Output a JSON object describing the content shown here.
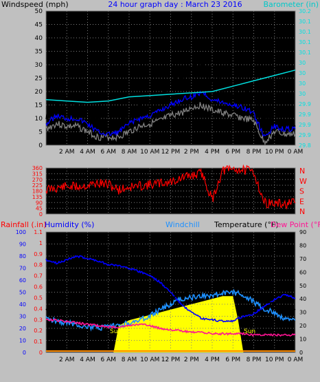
{
  "colors": {
    "bg": "#c0c0c0",
    "plot_bg": "#000000",
    "grid": "#808080",
    "wind_gust": "#000000",
    "wind_avg": "#0000ff",
    "wind_min": "#808080",
    "barometer": "#00e0e0",
    "direction": "#ff0000",
    "humidity": "#0000ff",
    "windchill": "#1e90ff",
    "temperature": "#000000",
    "dewpoint": "#ff1493",
    "rain": "#ffff00",
    "rain_line": "#ff8c00"
  },
  "chart_data": [
    {
      "type": "line",
      "title": "24 hour graph day : March 23 2016",
      "ylabel": "Windspeed (mph)",
      "y2label": "Barometer (in)",
      "ylim": [
        0,
        50
      ],
      "y2lim": [
        29.8,
        30.3
      ],
      "yticks": [
        "0",
        "5",
        "10",
        "15",
        "20",
        "25",
        "30",
        "35",
        "40",
        "45",
        "50"
      ],
      "y2ticks": [
        "29.8",
        "29.9",
        "29.9",
        "29.9",
        "29.9",
        "30",
        "30",
        "30",
        "30",
        "30.1",
        "30.1",
        "30.1",
        "30.1",
        "30.2"
      ],
      "xticks": [
        "2 AM",
        "4 AM",
        "6 AM",
        "8 AM",
        "10 AM",
        "12 PM",
        "2 PM",
        "4 PM",
        "6 PM",
        "8 PM",
        "10 PM",
        "0 AM"
      ],
      "grid": true,
      "series": [
        {
          "name": "",
          "key": "gust",
          "x": [
            0,
            1,
            2,
            3,
            4,
            5,
            6,
            7,
            8,
            9,
            10,
            11,
            12,
            13,
            14,
            15,
            16,
            17,
            18,
            19,
            20,
            21,
            22,
            23,
            24
          ],
          "values": [
            9,
            16,
            15,
            14,
            12,
            8,
            6,
            7,
            10,
            14,
            15,
            18,
            22,
            25,
            27,
            30,
            24,
            22,
            20,
            19,
            18,
            10,
            8,
            8,
            7
          ]
        },
        {
          "name": "",
          "key": "avg",
          "x": [
            0,
            1,
            2,
            3,
            4,
            5,
            6,
            7,
            8,
            9,
            10,
            11,
            12,
            13,
            14,
            15,
            16,
            17,
            18,
            19,
            20,
            21,
            22,
            23,
            24
          ],
          "values": [
            8,
            11,
            10,
            10,
            8,
            5,
            4,
            5,
            8,
            10,
            11,
            13,
            15,
            17,
            18,
            20,
            17,
            16,
            15,
            14,
            12,
            3,
            7,
            6,
            6
          ]
        },
        {
          "name": "",
          "key": "min",
          "x": [
            0,
            1,
            2,
            3,
            4,
            5,
            6,
            7,
            8,
            9,
            10,
            11,
            12,
            13,
            14,
            15,
            16,
            17,
            18,
            19,
            20,
            21,
            22,
            23,
            24
          ],
          "values": [
            6,
            8,
            7,
            7,
            5,
            3,
            3,
            3,
            5,
            7,
            8,
            9,
            11,
            12,
            14,
            15,
            13,
            12,
            11,
            10,
            9,
            1,
            5,
            4,
            4
          ]
        },
        {
          "name": "",
          "key": "baro",
          "axis": "y2",
          "x": [
            0,
            2,
            4,
            6,
            8,
            10,
            12,
            14,
            16,
            18,
            20,
            22,
            24
          ],
          "values": [
            29.97,
            29.965,
            29.96,
            29.965,
            29.98,
            29.985,
            29.99,
            29.995,
            30.0,
            30.02,
            30.04,
            30.06,
            30.08
          ]
        }
      ]
    },
    {
      "type": "line",
      "ylim": [
        0,
        360
      ],
      "yticks": [
        "0",
        "45",
        "90",
        "135",
        "180",
        "225",
        "270",
        "315",
        "360"
      ],
      "y2ticks": [
        "N",
        "W",
        "S",
        "E",
        "N"
      ],
      "xticks": [],
      "grid": true,
      "series": [
        {
          "name": "",
          "key": "dir",
          "x": [
            0,
            1,
            2,
            3,
            4,
            5,
            6,
            7,
            8,
            9,
            10,
            11,
            12,
            13,
            14,
            15,
            16,
            17,
            18,
            19,
            20,
            21,
            22,
            23,
            24
          ],
          "values": [
            190,
            205,
            215,
            215,
            225,
            240,
            230,
            190,
            210,
            220,
            230,
            240,
            250,
            280,
            300,
            320,
            110,
            340,
            350,
            345,
            330,
            90,
            80,
            75,
            85
          ]
        }
      ]
    },
    {
      "type": "line",
      "ylabels": [
        "Rainfall (.in)",
        "Humidity (%)",
        "Windchill",
        "Temperature (°F)",
        "Dew Point (°F)"
      ],
      "ylim_humidity": [
        0,
        100
      ],
      "ylim_rain": [
        0,
        1.1
      ],
      "ylim_temp": [
        0,
        90
      ],
      "yticks_humidity": [
        "0",
        "10",
        "20",
        "30",
        "40",
        "50",
        "60",
        "70",
        "80",
        "90",
        "100"
      ],
      "yticks_rain": [
        "0",
        "0.1",
        "0.2",
        "0.3",
        "0.4",
        "0.5",
        "0.6",
        "0.7",
        "0.8",
        "0.9",
        "1",
        "1.1"
      ],
      "yticks_temp": [
        "0",
        "10",
        "20",
        "30",
        "40",
        "50",
        "60",
        "70",
        "80",
        "90"
      ],
      "xticks": [
        "2 AM",
        "4 AM",
        "6 AM",
        "8 AM",
        "10 AM",
        "12 PM",
        "2 PM",
        "4 PM",
        "6 PM",
        "8 PM",
        "10 PM",
        "0 AM"
      ],
      "annotations": [
        "Sun",
        "Sun"
      ],
      "grid": true,
      "series": [
        {
          "name": "",
          "key": "humidity",
          "x": [
            0,
            1,
            2,
            3,
            4,
            5,
            6,
            7,
            8,
            9,
            10,
            11,
            12,
            13,
            14,
            15,
            16,
            17,
            18,
            19,
            20,
            21,
            22,
            23,
            24
          ],
          "values": [
            77,
            74,
            77,
            80,
            78,
            76,
            73,
            72,
            70,
            67,
            64,
            58,
            50,
            40,
            33,
            28,
            27,
            26,
            26,
            30,
            32,
            38,
            44,
            48,
            45
          ]
        },
        {
          "name": "",
          "key": "temp",
          "x": [
            0,
            1,
            2,
            3,
            4,
            5,
            6,
            7,
            8,
            9,
            10,
            11,
            12,
            13,
            14,
            15,
            16,
            17,
            18,
            19,
            20,
            21,
            22,
            23,
            24
          ],
          "values": [
            32,
            31,
            29,
            28,
            27,
            26,
            25,
            25,
            26,
            28,
            31,
            36,
            40,
            43,
            46,
            48,
            49,
            50,
            51,
            49,
            44,
            40,
            36,
            34,
            32
          ]
        },
        {
          "name": "",
          "key": "windchill",
          "x": [
            0,
            1,
            2,
            3,
            4,
            5,
            6,
            7,
            8,
            9,
            10,
            11,
            12,
            13,
            14,
            15,
            16,
            17,
            18,
            19,
            20,
            21,
            22,
            23,
            24
          ],
          "values": [
            25,
            24,
            22,
            21,
            19,
            18,
            19,
            20,
            22,
            24,
            27,
            32,
            36,
            40,
            41,
            42,
            43,
            44,
            45,
            43,
            38,
            32,
            30,
            25,
            24
          ]
        },
        {
          "name": "",
          "key": "dewpoint",
          "x": [
            0,
            1,
            2,
            3,
            4,
            5,
            6,
            7,
            8,
            9,
            10,
            11,
            12,
            13,
            14,
            15,
            16,
            17,
            18,
            19,
            20,
            21,
            22,
            23,
            24
          ],
          "values": [
            24,
            24,
            23,
            22,
            21,
            20,
            19,
            19,
            20,
            21,
            20,
            18,
            17,
            16,
            15,
            15,
            14,
            14,
            14,
            14,
            13,
            13,
            13,
            13,
            13
          ]
        },
        {
          "name": "",
          "key": "solar",
          "x": [
            6.5,
            7,
            8,
            9,
            10,
            11,
            12,
            13,
            14,
            15,
            16,
            17,
            18,
            18.5,
            19
          ],
          "values": [
            0,
            20,
            24,
            26,
            28,
            30,
            32,
            34,
            36,
            38,
            40,
            42,
            42,
            24,
            0
          ]
        }
      ]
    }
  ]
}
